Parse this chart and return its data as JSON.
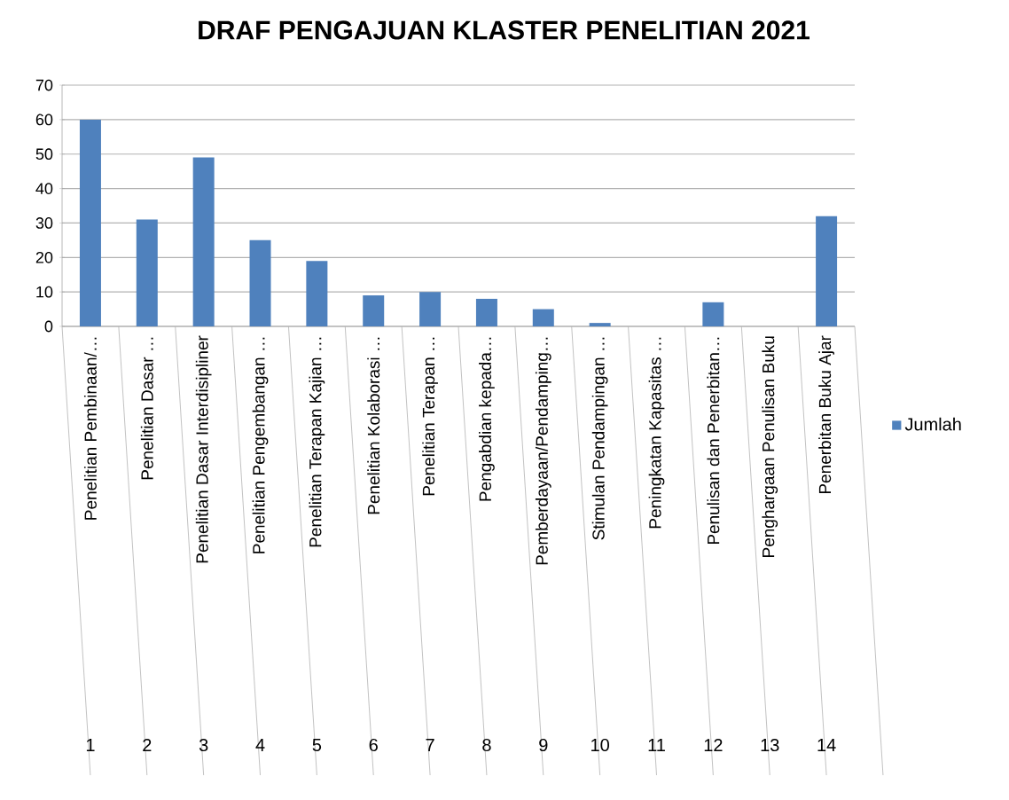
{
  "chart_data": {
    "type": "bar",
    "title": "DRAF PENGAJUAN  KLASTER PENELITIAN 2021",
    "categories": [
      "Penelitian Pembinaan/…",
      "Penelitian Dasar …",
      "Penelitian Dasar Interdisipliner",
      "Penelitian Pengembangan …",
      "Penelitian Terapan Kajian …",
      "Penelitian Kolaborasi …",
      "Penelitian Terapan …",
      "Pengabdian kepada…",
      "Pemberdayaan/Pendamping…",
      "Stimulan Pendampingan …",
      "Peningkatan Kapasitas …",
      "Penulisan dan Penerbitan…",
      "Penghargaan Penulisan Buku",
      "Penerbitan Buku Ajar"
    ],
    "annotations": [
      "1",
      "2",
      "3",
      "4",
      "5",
      "6",
      "7",
      "8",
      "9",
      "10",
      "11",
      "12",
      "13",
      "14"
    ],
    "series": [
      {
        "name": "Jumlah",
        "color": "#4f81bd",
        "values": [
          60,
          31,
          49,
          25,
          19,
          9,
          10,
          8,
          5,
          1,
          0,
          7,
          0,
          32
        ]
      }
    ],
    "ylim": [
      0,
      70
    ],
    "yticks": [
      0,
      10,
      20,
      30,
      40,
      50,
      60,
      70
    ],
    "grid": "y",
    "legend": "right"
  }
}
